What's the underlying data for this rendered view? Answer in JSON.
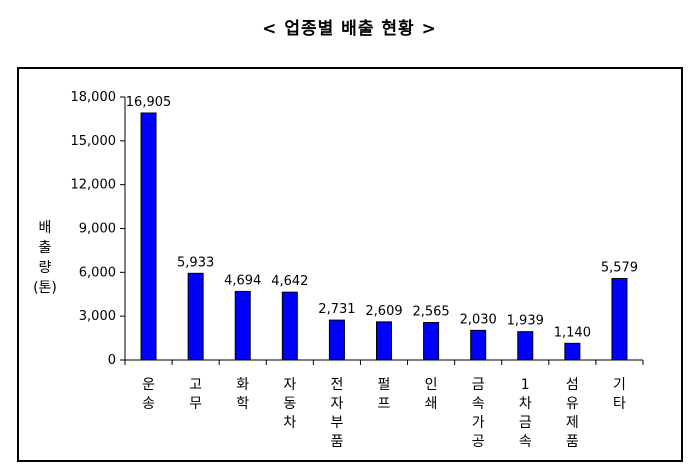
{
  "page": {
    "title": "< 업종별 배출 현황 >"
  },
  "chart_data": {
    "type": "bar",
    "title": "< 업종별 배출 현황 >",
    "ylabel": "배출량 (톤)",
    "ylabel_lines": [
      "배",
      "출",
      "량",
      "(톤)"
    ],
    "xlabel": "",
    "categories": [
      "운송",
      "고무",
      "화학",
      "자동차",
      "전자부품",
      "펄프",
      "인쇄",
      "금속가공",
      "1차금속",
      "섬유제품",
      "기타"
    ],
    "values": [
      16905,
      5933,
      4694,
      4642,
      2731,
      2609,
      2565,
      2030,
      1939,
      1140,
      5579
    ],
    "value_labels": [
      "16,905",
      "5,933",
      "4,694",
      "4,642",
      "2,731",
      "2,609",
      "2,565",
      "2,030",
      "1,939",
      "1,140",
      "5,579"
    ],
    "ylim": [
      0,
      18000
    ],
    "yticks": [
      0,
      3000,
      6000,
      9000,
      12000,
      15000,
      18000
    ],
    "ytick_labels": [
      "0",
      "3,000",
      "6,000",
      "9,000",
      "12,000",
      "15,000",
      "18,000"
    ],
    "grid": false,
    "legend": "none",
    "bar_color": "#0000ff",
    "bar_outline_color": "#000000"
  }
}
